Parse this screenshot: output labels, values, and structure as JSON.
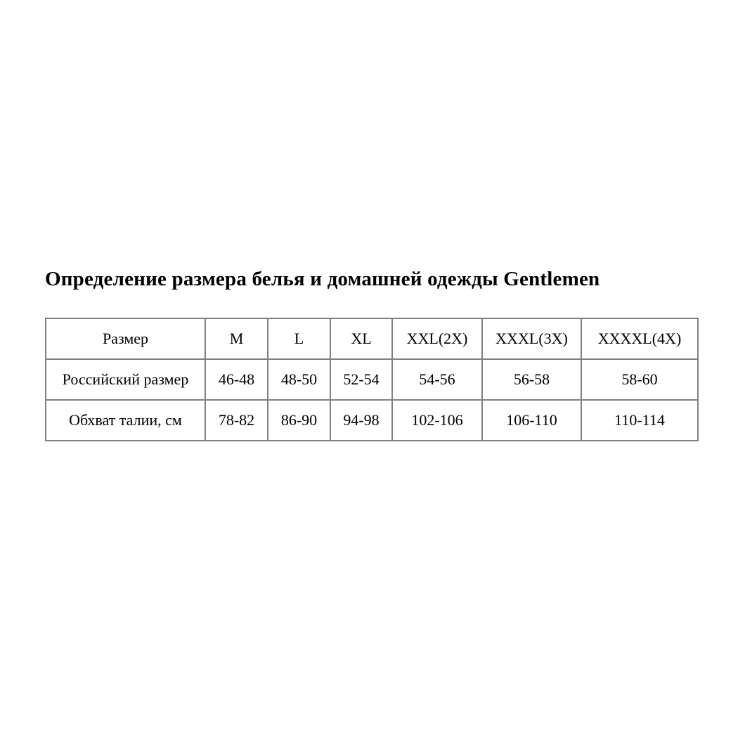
{
  "title": "Определение размера белья и домашней одежды Gentlemen",
  "table": {
    "header": [
      "Размер",
      "M",
      "L",
      "XL",
      "XXL(2X)",
      "XXXL(3X)",
      "XXXXL(4X)"
    ],
    "rows": [
      {
        "label": "Российский размер",
        "values": [
          "46-48",
          "48-50",
          "52-54",
          "54-56",
          "56-58",
          "58-60"
        ]
      },
      {
        "label": "Обхват талии, см",
        "values": [
          "78-82",
          "86-90",
          "94-98",
          "102-106",
          "106-110",
          "110-114"
        ]
      }
    ]
  }
}
